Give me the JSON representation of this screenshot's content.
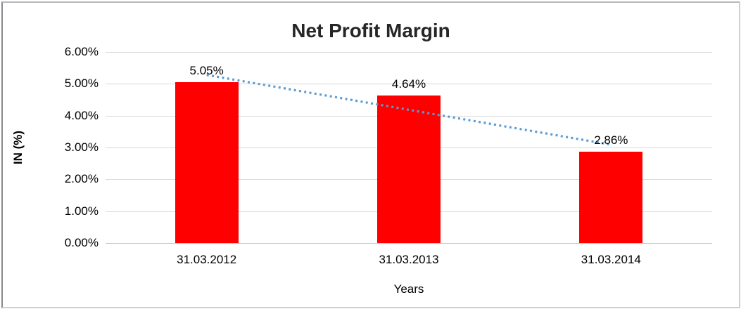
{
  "chart_data": {
    "type": "bar",
    "title": "Net Profit Margin",
    "categories": [
      "31.03.2012",
      "31.03.2013",
      "31.03.2014"
    ],
    "values": [
      5.05,
      4.64,
      2.86
    ],
    "data_labels": [
      "5.05%",
      "4.64%",
      "2.86%"
    ],
    "xlabel": "Years",
    "ylabel": "IN (%)",
    "ylim": [
      0,
      6
    ],
    "ytick_step": 1,
    "ytick_labels": [
      "0.00%",
      "1.00%",
      "2.00%",
      "3.00%",
      "4.00%",
      "5.00%",
      "6.00%"
    ],
    "grid": true,
    "legend": "none",
    "bar_color": "#ff0000",
    "gridline_color": "#d9d9d9",
    "axis_line_color": "#c3c3c3",
    "trendline": {
      "kind": "linear",
      "style": "dotted",
      "color": "#5b9bd5"
    }
  }
}
